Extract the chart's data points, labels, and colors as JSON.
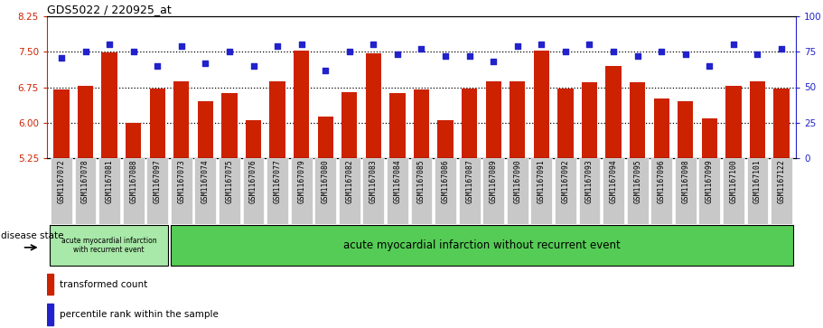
{
  "title": "GDS5022 / 220925_at",
  "samples": [
    "GSM1167072",
    "GSM1167078",
    "GSM1167081",
    "GSM1167088",
    "GSM1167097",
    "GSM1167073",
    "GSM1167074",
    "GSM1167075",
    "GSM1167076",
    "GSM1167077",
    "GSM1167079",
    "GSM1167080",
    "GSM1167082",
    "GSM1167083",
    "GSM1167084",
    "GSM1167085",
    "GSM1167086",
    "GSM1167087",
    "GSM1167089",
    "GSM1167090",
    "GSM1167091",
    "GSM1167092",
    "GSM1167093",
    "GSM1167094",
    "GSM1167095",
    "GSM1167096",
    "GSM1167098",
    "GSM1167099",
    "GSM1167100",
    "GSM1167101",
    "GSM1167122"
  ],
  "bar_values": [
    6.7,
    6.78,
    7.48,
    5.99,
    6.73,
    6.88,
    6.45,
    6.62,
    6.05,
    6.88,
    7.52,
    6.12,
    6.65,
    7.47,
    6.62,
    6.7,
    6.05,
    6.72,
    6.87,
    6.88,
    7.52,
    6.72,
    6.86,
    7.2,
    6.85,
    6.52,
    6.45,
    6.1,
    6.78,
    6.88,
    6.73
  ],
  "dot_values": [
    71,
    75,
    80,
    75,
    65,
    79,
    67,
    75,
    65,
    79,
    80,
    62,
    75,
    80,
    73,
    77,
    72,
    72,
    68,
    79,
    80,
    75,
    80,
    75,
    72,
    75,
    73,
    65,
    80,
    73,
    77
  ],
  "ylim_left": [
    5.25,
    8.25
  ],
  "ylim_right": [
    0,
    100
  ],
  "yticks_left": [
    5.25,
    6.0,
    6.75,
    7.5,
    8.25
  ],
  "yticks_right": [
    0,
    25,
    50,
    75,
    100
  ],
  "bar_color": "#cc2200",
  "dot_color": "#2222cc",
  "group1_count": 5,
  "group1_label": "acute myocardial infarction\nwith recurrent event",
  "group2_label": "acute myocardial infarction without recurrent event",
  "group1_color": "#a8e8a8",
  "group2_color": "#55cc55",
  "disease_state_label": "disease state",
  "legend1": "transformed count",
  "legend2": "percentile rank within the sample",
  "hlines": [
    7.5,
    6.75,
    6.0
  ],
  "xtick_bg": "#c8c8c8"
}
